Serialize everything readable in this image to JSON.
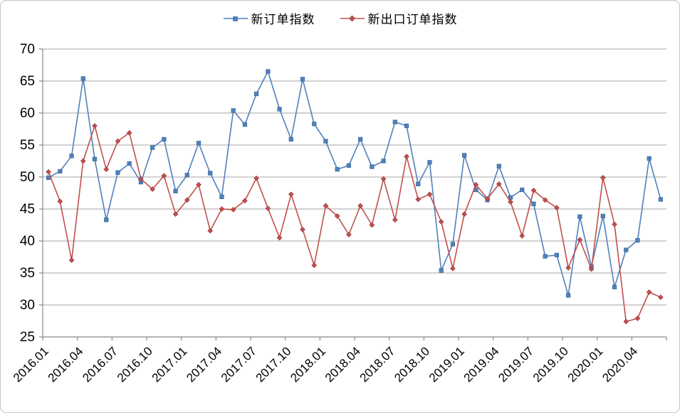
{
  "legend": {
    "series1_label": "新订单指数",
    "series2_label": "新出口订单指数"
  },
  "colors": {
    "series1": "#4F81BD",
    "series2": "#C0504D",
    "gridline": "#A6A6A6",
    "axis": "#898989",
    "tick_label": "#000000",
    "card_border": "#C6C6C6",
    "background": "#FFFFFF"
  },
  "chart_data": {
    "type": "line",
    "title": "",
    "xlabel": "",
    "ylabel": "",
    "ylim": [
      25,
      70
    ],
    "y_ticks": [
      25,
      30,
      35,
      40,
      45,
      50,
      55,
      60,
      65,
      70
    ],
    "grid": "horizontal-only",
    "legend_position": "top-center",
    "x_tick_every": 3,
    "x_tick_labels": [
      "2016.01",
      "2016.04",
      "2016.07",
      "2016.10",
      "2017.01",
      "2017.04",
      "2017.07",
      "2017.10",
      "2018.01",
      "2018.04",
      "2018.07",
      "2018.10",
      "2019.01",
      "2019.04",
      "2019.07",
      "2019.10",
      "2020.01",
      "2020.04"
    ],
    "categories": [
      "2016.01",
      "2016.02",
      "2016.03",
      "2016.04",
      "2016.05",
      "2016.06",
      "2016.07",
      "2016.08",
      "2016.09",
      "2016.10",
      "2016.11",
      "2016.12",
      "2017.01",
      "2017.02",
      "2017.03",
      "2017.04",
      "2017.05",
      "2017.06",
      "2017.07",
      "2017.08",
      "2017.09",
      "2017.10",
      "2017.11",
      "2017.12",
      "2018.01",
      "2018.02",
      "2018.03",
      "2018.04",
      "2018.05",
      "2018.06",
      "2018.07",
      "2018.08",
      "2018.09",
      "2018.10",
      "2018.11",
      "2018.12",
      "2019.01",
      "2019.02",
      "2019.03",
      "2019.04",
      "2019.05",
      "2019.06",
      "2019.07",
      "2019.08",
      "2019.09",
      "2019.10",
      "2019.11",
      "2019.12",
      "2020.01",
      "2020.02",
      "2020.03",
      "2020.04",
      "2020.05",
      "2020.06"
    ],
    "series": [
      {
        "name": "新订单指数",
        "color": "#4F81BD",
        "marker": "square",
        "values": [
          49.9,
          50.9,
          53.3,
          65.4,
          52.8,
          43.3,
          50.7,
          52.1,
          49.2,
          54.6,
          55.9,
          47.8,
          50.3,
          55.3,
          50.6,
          46.9,
          60.4,
          58.2,
          63.0,
          66.5,
          60.6,
          55.9,
          65.3,
          58.3,
          55.6,
          51.2,
          51.8,
          55.9,
          51.6,
          52.5,
          58.6,
          58.0,
          48.9,
          52.3,
          35.4,
          39.5,
          53.4,
          48.0,
          46.4,
          51.7,
          46.8,
          48.0,
          45.8,
          37.6,
          37.8,
          31.5,
          43.8,
          36.0,
          43.9,
          32.8,
          38.6,
          40.1,
          52.9,
          46.5
        ]
      },
      {
        "name": "新出口订单指数",
        "color": "#C0504D",
        "marker": "diamond",
        "values": [
          50.8,
          46.2,
          37.0,
          52.5,
          58.0,
          51.2,
          55.6,
          56.9,
          49.7,
          48.1,
          50.2,
          44.2,
          46.4,
          48.8,
          41.6,
          45.0,
          44.9,
          46.3,
          49.8,
          45.1,
          40.5,
          47.3,
          41.8,
          36.2,
          45.5,
          43.9,
          41.0,
          45.5,
          42.5,
          49.7,
          43.3,
          53.2,
          46.5,
          47.3,
          43.0,
          35.7,
          44.2,
          48.8,
          46.6,
          48.9,
          46.1,
          40.8,
          47.9,
          46.4,
          45.2,
          35.8,
          40.2,
          35.6,
          49.9,
          42.6,
          27.4,
          27.9,
          32.0,
          31.2
        ]
      }
    ]
  }
}
